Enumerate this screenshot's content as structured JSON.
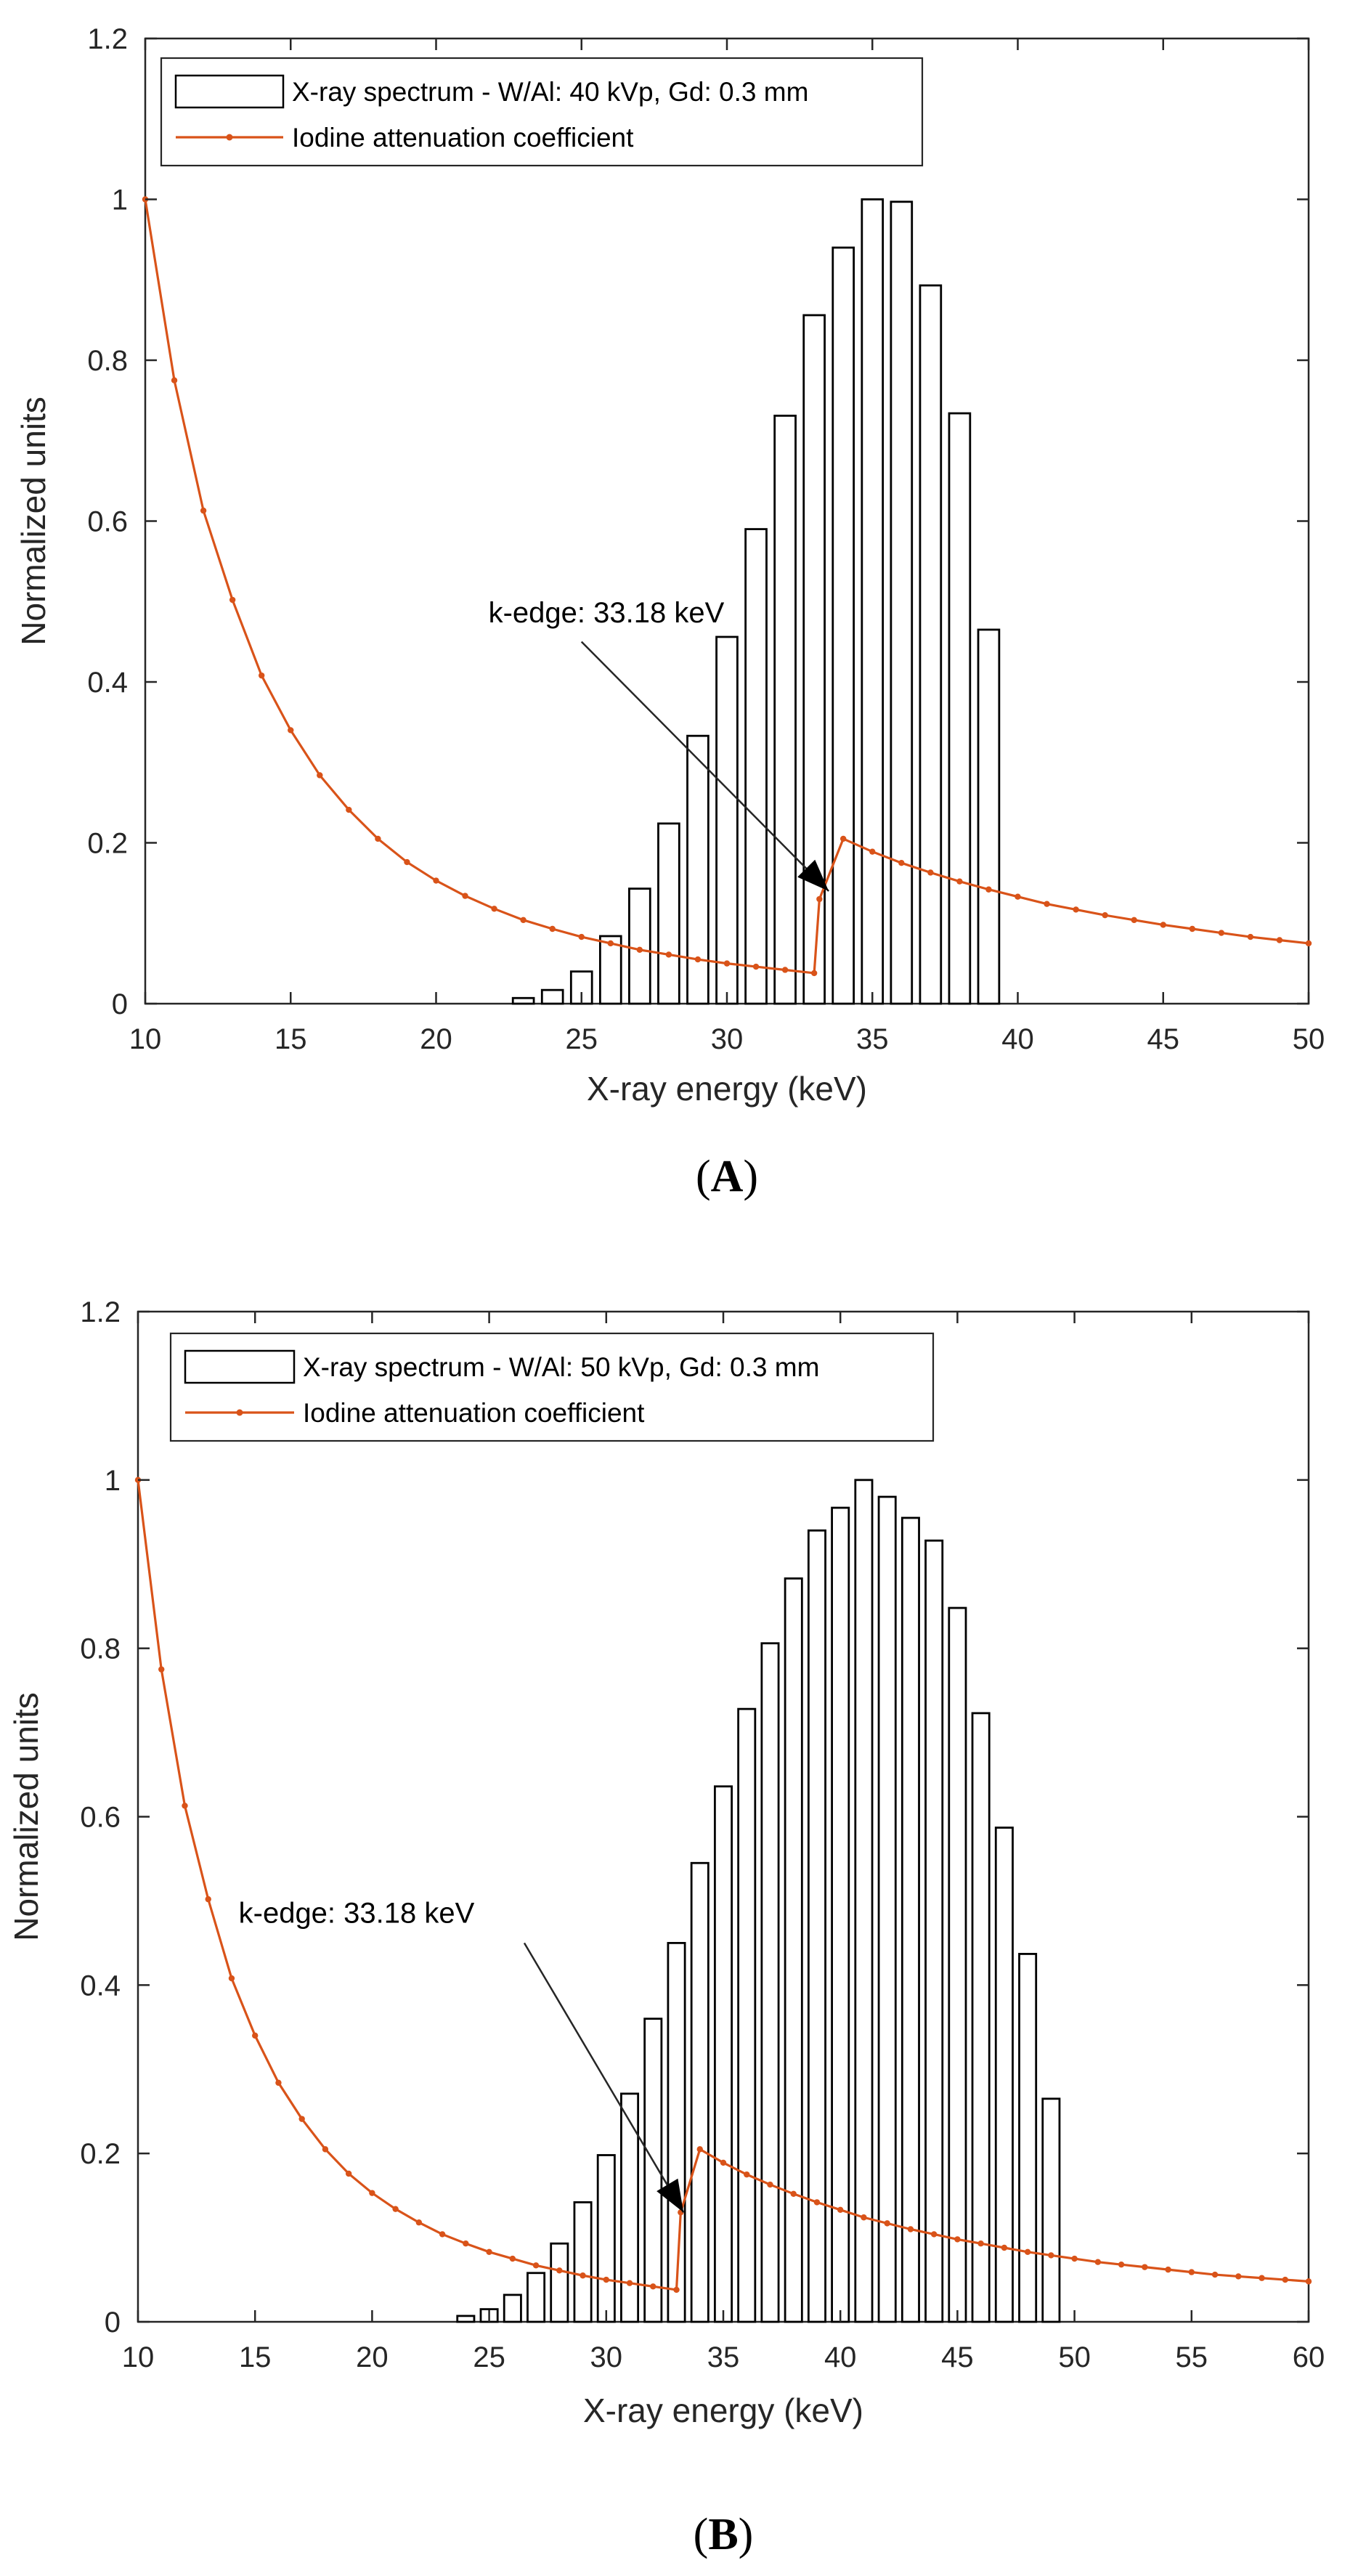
{
  "chart_data": [
    {
      "panel_label": "A",
      "type": "bar",
      "xlabel": "X-ray energy (keV)",
      "ylabel": "Normalized units",
      "xlim": [
        10,
        50
      ],
      "ylim": [
        0,
        1.2
      ],
      "xticks": [
        10,
        15,
        20,
        25,
        30,
        35,
        40,
        45,
        50
      ],
      "yticks": [
        0,
        0.2,
        0.4,
        0.6,
        0.8,
        1,
        1.2
      ],
      "grid": false,
      "legend_position": "top-left",
      "series": [
        {
          "name": "X-ray spectrum - W/Al: 40 kVp, Gd:  0.3 mm",
          "type": "bar",
          "color": "#000000",
          "x": [
            23,
            24,
            25,
            26,
            27,
            28,
            29,
            30,
            31,
            32,
            33,
            34,
            35,
            36,
            37,
            38,
            39
          ],
          "values": [
            0.007,
            0.017,
            0.04,
            0.084,
            0.143,
            0.224,
            0.333,
            0.456,
            0.59,
            0.731,
            0.856,
            0.94,
            1.0,
            0.997,
            0.893,
            0.734,
            0.465
          ]
        },
        {
          "name": "Iodine attenuation coefficient",
          "type": "line",
          "color": "#D95319",
          "x": [
            10,
            11,
            12,
            13,
            14,
            15,
            16,
            17,
            18,
            19,
            20,
            21,
            22,
            23,
            24,
            25,
            26,
            27,
            28,
            29,
            30,
            31,
            32,
            33,
            33.18,
            34,
            35,
            36,
            37,
            38,
            39,
            40,
            41,
            42,
            43,
            44,
            45,
            46,
            47,
            48,
            49,
            50
          ],
          "y": [
            1.0,
            0.775,
            0.613,
            0.502,
            0.408,
            0.34,
            0.284,
            0.241,
            0.205,
            0.176,
            0.153,
            0.134,
            0.118,
            0.104,
            0.093,
            0.083,
            0.075,
            0.067,
            0.061,
            0.055,
            0.05,
            0.046,
            0.042,
            0.038,
            0.13,
            0.205,
            0.189,
            0.175,
            0.163,
            0.152,
            0.142,
            0.133,
            0.124,
            0.117,
            0.11,
            0.104,
            0.098,
            0.093,
            0.088,
            0.083,
            0.079,
            0.075
          ]
        }
      ],
      "annotation": {
        "text": "k-edge: 33.18 keV",
        "text_x": 21.8,
        "text_y": 0.474,
        "arrow_from": [
          25.0,
          0.45
        ],
        "arrow_to": [
          33.5,
          0.14
        ]
      }
    },
    {
      "panel_label": "B",
      "type": "bar",
      "xlabel": "X-ray energy (keV)",
      "ylabel": "Normalized units",
      "xlim": [
        10,
        60
      ],
      "ylim": [
        0,
        1.2
      ],
      "xticks": [
        10,
        15,
        20,
        25,
        30,
        35,
        40,
        45,
        50,
        55,
        60
      ],
      "yticks": [
        0,
        0.2,
        0.4,
        0.6,
        0.8,
        1,
        1.2
      ],
      "grid": false,
      "legend_position": "top-left",
      "series": [
        {
          "name": "X-ray spectrum - W/Al: 50 kVp, Gd: 0.3 mm",
          "type": "bar",
          "color": "#000000",
          "x": [
            24,
            25,
            26,
            27,
            28,
            29,
            30,
            31,
            32,
            33,
            34,
            35,
            36,
            37,
            38,
            39,
            40,
            41,
            42,
            43,
            44,
            45,
            46,
            47,
            48,
            49
          ],
          "values": [
            0.007,
            0.015,
            0.032,
            0.058,
            0.093,
            0.142,
            0.198,
            0.271,
            0.36,
            0.45,
            0.545,
            0.636,
            0.728,
            0.806,
            0.883,
            0.94,
            0.967,
            1.0,
            0.98,
            0.955,
            0.928,
            0.848,
            0.723,
            0.587,
            0.437,
            0.265
          ]
        },
        {
          "name": "Iodine attenuation coefficient",
          "type": "line",
          "color": "#D95319",
          "x": [
            10,
            11,
            12,
            13,
            14,
            15,
            16,
            17,
            18,
            19,
            20,
            21,
            22,
            23,
            24,
            25,
            26,
            27,
            28,
            29,
            30,
            31,
            32,
            33,
            33.18,
            34,
            35,
            36,
            37,
            38,
            39,
            40,
            41,
            42,
            43,
            44,
            45,
            46,
            47,
            48,
            49,
            50,
            51,
            52,
            53,
            54,
            55,
            56,
            57,
            58,
            59,
            60
          ],
          "y": [
            1.0,
            0.775,
            0.613,
            0.502,
            0.408,
            0.34,
            0.284,
            0.241,
            0.205,
            0.176,
            0.153,
            0.134,
            0.118,
            0.104,
            0.093,
            0.083,
            0.075,
            0.067,
            0.061,
            0.055,
            0.05,
            0.046,
            0.042,
            0.038,
            0.13,
            0.205,
            0.189,
            0.175,
            0.163,
            0.152,
            0.142,
            0.133,
            0.124,
            0.117,
            0.11,
            0.104,
            0.098,
            0.093,
            0.088,
            0.083,
            0.079,
            0.075,
            0.071,
            0.068,
            0.065,
            0.062,
            0.059,
            0.056,
            0.054,
            0.052,
            0.05,
            0.048
          ]
        }
      ],
      "annotation": {
        "text": "k-edge: 33.18 keV",
        "text_x": 14.3,
        "text_y": 0.474,
        "arrow_from": [
          26.5,
          0.45
        ],
        "arrow_to": [
          33.3,
          0.13
        ]
      }
    }
  ]
}
